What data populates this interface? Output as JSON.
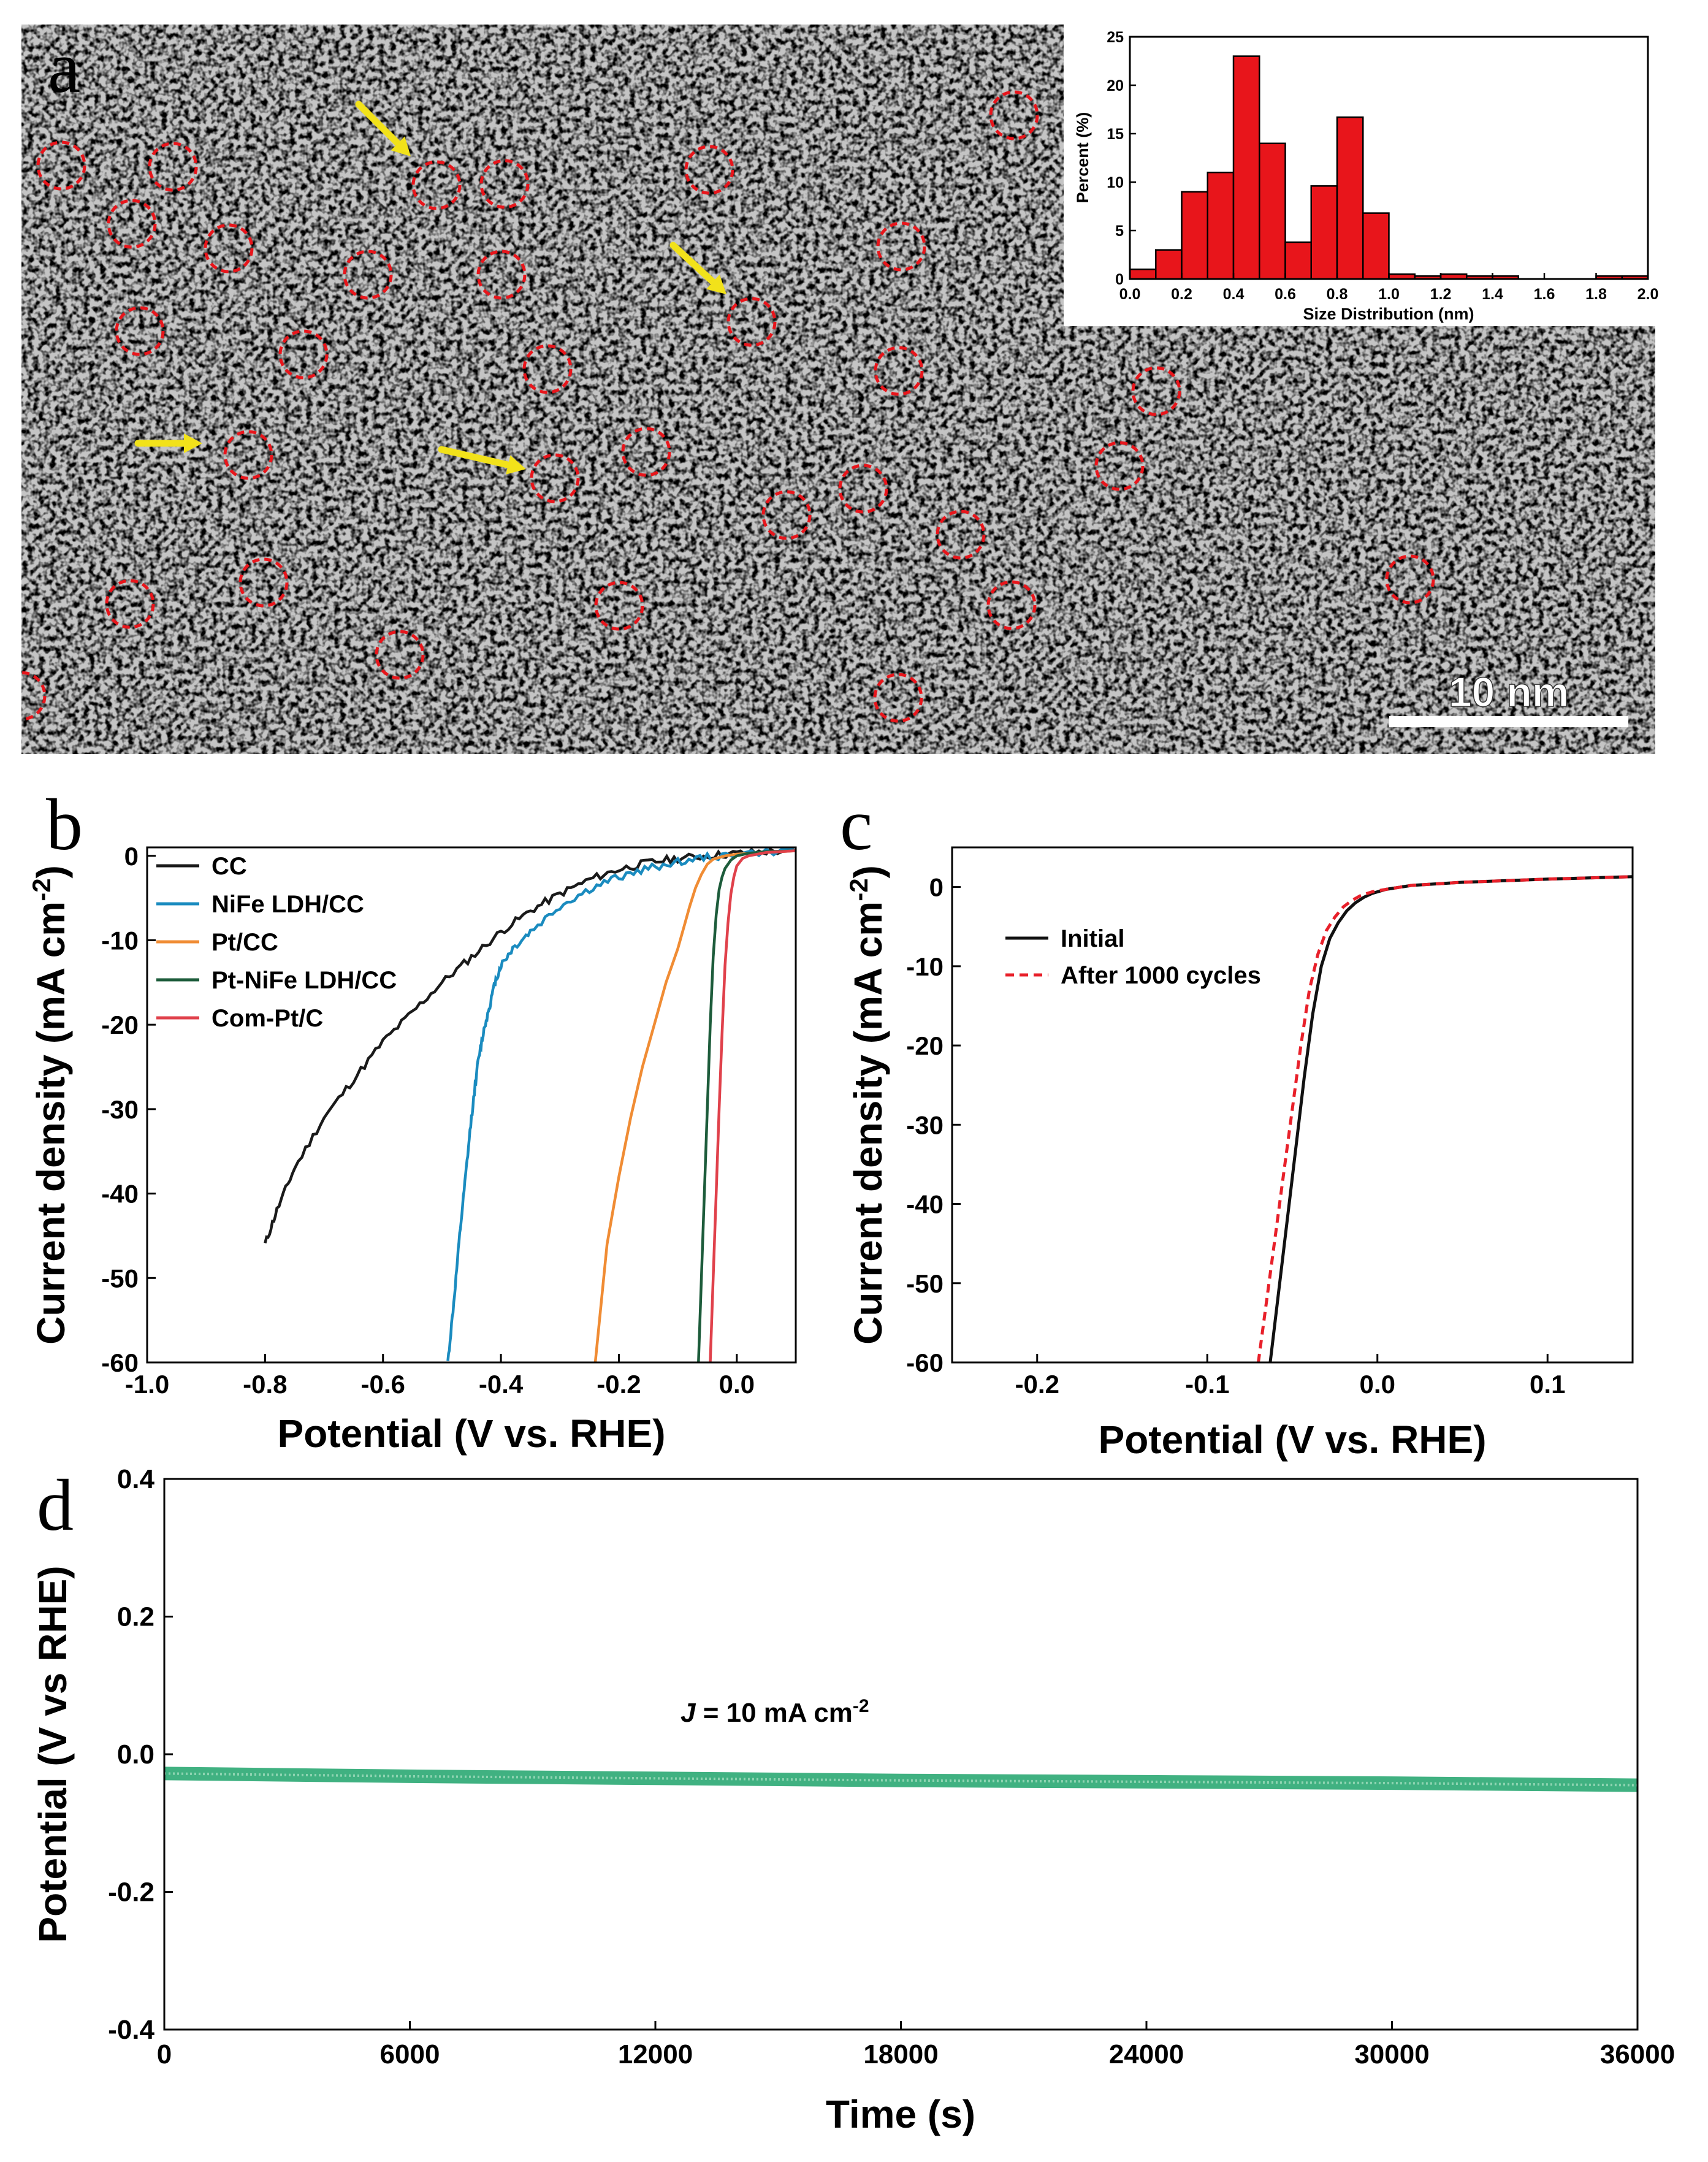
{
  "panel_letters": {
    "a": "a",
    "b": "b",
    "c": "c",
    "d": "d"
  },
  "micrograph": {
    "scale_bar_label": "10 nm",
    "description": "TEM image with red dashed circles marking single Pt atoms and yellow arrows"
  },
  "colors": {
    "cc": "#1a1a1a",
    "nife": "#1a8bbf",
    "ptcc": "#f08c34",
    "ptnife": "#1d5c3b",
    "compt": "#e0414b",
    "initial": "#111111",
    "after": "#e8202a",
    "stability": "#1fa36b",
    "histogram": "#e8151b",
    "circles": "#e8151b",
    "arrows": "#f2e21a"
  },
  "chart_data": [
    {
      "id": "inset",
      "type": "bar",
      "xlabel": "Size Distribution (nm)",
      "ylabel": "Percent (%)",
      "xlim": [
        0,
        2.0
      ],
      "ylim": [
        0,
        25
      ],
      "xticks": [
        "0.0",
        "0.2",
        "0.4",
        "0.6",
        "0.8",
        "1.0",
        "1.2",
        "1.4",
        "1.6",
        "1.8",
        "2.0"
      ],
      "yticks": [
        "0",
        "5",
        "10",
        "15",
        "20",
        "25"
      ],
      "bin_width": 0.1,
      "bins": [
        0.05,
        0.15,
        0.25,
        0.35,
        0.45,
        0.55,
        0.65,
        0.75,
        0.85,
        0.95,
        1.05,
        1.15,
        1.25,
        1.35,
        1.45,
        1.55,
        1.65,
        1.75,
        1.85,
        1.95
      ],
      "values": [
        1.0,
        3.0,
        9.0,
        11.0,
        23.0,
        14.0,
        3.8,
        9.6,
        16.7,
        6.8,
        0.5,
        0.3,
        0.5,
        0.3,
        0.3,
        0.0,
        0.0,
        0.0,
        0.3,
        0.3
      ]
    },
    {
      "id": "b",
      "type": "line",
      "xlabel": "Potential (V vs. RHE)",
      "ylabel": "Current density (mA cm",
      "ylabel_sup": "-2",
      "ylabel_end": ")",
      "xlim": [
        -1.0,
        0.1
      ],
      "ylim": [
        -60,
        1
      ],
      "xticks": [
        "-1.0",
        "-0.8",
        "-0.6",
        "-0.4",
        "-0.2",
        "0.0"
      ],
      "yticks": [
        "0",
        "-10",
        "-20",
        "-30",
        "-40",
        "-50",
        "-60"
      ],
      "series": [
        {
          "name": "CC",
          "color_key": "cc",
          "x": [
            -0.8,
            -0.78,
            -0.75,
            -0.7,
            -0.65,
            -0.6,
            -0.55,
            -0.5,
            -0.45,
            -0.4,
            -0.35,
            -0.3,
            -0.25,
            -0.2,
            -0.15,
            -0.1,
            -0.05,
            0.0,
            0.05,
            0.1
          ],
          "y": [
            -46,
            -42,
            -37,
            -31,
            -26.5,
            -22,
            -18.5,
            -15,
            -12,
            -9,
            -6.5,
            -4.5,
            -2.8,
            -1.6,
            -0.8,
            -0.3,
            0,
            0.3,
            0.5,
            0.6
          ]
        },
        {
          "name": "NiFe LDH/CC",
          "color_key": "nife",
          "x": [
            -0.49,
            -0.48,
            -0.47,
            -0.46,
            -0.45,
            -0.44,
            -0.43,
            -0.42,
            -0.41,
            -0.4,
            -0.38,
            -0.35,
            -0.3,
            -0.25,
            -0.2,
            -0.15,
            -0.1,
            -0.05,
            0.0,
            0.1
          ],
          "y": [
            -60,
            -53,
            -45,
            -38,
            -31,
            -25,
            -21,
            -18,
            -15,
            -13,
            -11,
            -9,
            -6,
            -4,
            -2.5,
            -1.5,
            -0.7,
            -0.2,
            0.2,
            0.6
          ]
        },
        {
          "name": "Pt/CC",
          "color_key": "ptcc",
          "x": [
            -0.24,
            -0.23,
            -0.22,
            -0.2,
            -0.18,
            -0.16,
            -0.14,
            -0.12,
            -0.1,
            -0.09,
            -0.08,
            -0.07,
            -0.06,
            -0.05,
            -0.04,
            -0.02,
            0.0,
            0.05,
            0.1
          ],
          "y": [
            -60,
            -53,
            -46,
            -38,
            -31,
            -25,
            -20,
            -15,
            -11,
            -8.5,
            -6,
            -3.8,
            -2.2,
            -1,
            -0.4,
            0,
            0.2,
            0.4,
            0.6
          ]
        },
        {
          "name": "Pt-NiFe LDH/CC",
          "color_key": "ptnife",
          "x": [
            -0.065,
            -0.06,
            -0.055,
            -0.05,
            -0.045,
            -0.04,
            -0.035,
            -0.03,
            -0.025,
            -0.02,
            -0.01,
            0.0,
            0.02,
            0.05,
            0.1
          ],
          "y": [
            -60,
            -50,
            -40,
            -30,
            -20,
            -12,
            -7,
            -4,
            -2.5,
            -1.5,
            -0.5,
            0,
            0.3,
            0.5,
            0.6
          ]
        },
        {
          "name": "Com-Pt/C",
          "color_key": "compt",
          "x": [
            -0.045,
            -0.04,
            -0.035,
            -0.03,
            -0.025,
            -0.02,
            -0.015,
            -0.01,
            -0.005,
            0.0,
            0.01,
            0.02,
            0.05,
            0.1
          ],
          "y": [
            -60,
            -50,
            -40,
            -30,
            -21,
            -13,
            -8,
            -4.5,
            -2.5,
            -1.2,
            -0.3,
            0,
            0.4,
            0.6
          ]
        }
      ]
    },
    {
      "id": "c",
      "type": "line",
      "xlabel": "Potential (V vs. RHE)",
      "ylabel": "Current density (mA cm",
      "ylabel_sup": "-2",
      "ylabel_end": ")",
      "xlim": [
        -0.25,
        0.15
      ],
      "ylim": [
        -60,
        5
      ],
      "xticks": [
        "-0.2",
        "-0.1",
        "0.0",
        "0.1"
      ],
      "yticks": [
        "0",
        "-10",
        "-20",
        "-30",
        "-40",
        "-50",
        "-60"
      ],
      "series": [
        {
          "name": "Initial",
          "color_key": "initial",
          "dash": false,
          "x": [
            -0.063,
            -0.058,
            -0.053,
            -0.048,
            -0.043,
            -0.038,
            -0.033,
            -0.028,
            -0.023,
            -0.018,
            -0.013,
            -0.008,
            -0.003,
            0.005,
            0.02,
            0.05,
            0.1,
            0.15
          ],
          "y": [
            -60,
            -51,
            -42,
            -33,
            -24,
            -16,
            -10,
            -6.5,
            -4.5,
            -3,
            -2,
            -1.3,
            -0.8,
            -0.3,
            0.2,
            0.6,
            1,
            1.3
          ]
        },
        {
          "name": "After 1000 cycles",
          "color_key": "after",
          "dash": true,
          "x": [
            -0.07,
            -0.065,
            -0.06,
            -0.055,
            -0.05,
            -0.045,
            -0.04,
            -0.035,
            -0.03,
            -0.025,
            -0.02,
            -0.015,
            -0.01,
            -0.003,
            0.005,
            0.02,
            0.05,
            0.1,
            0.15
          ],
          "y": [
            -60,
            -52,
            -44,
            -36,
            -28,
            -20,
            -13,
            -8.5,
            -5.5,
            -3.8,
            -2.5,
            -1.7,
            -1.1,
            -0.6,
            -0.3,
            0.2,
            0.6,
            1,
            1.3
          ]
        }
      ]
    },
    {
      "id": "d",
      "type": "line",
      "xlabel": "Time (s)",
      "ylabel": "Potential (V vs RHE)",
      "xlim": [
        0,
        36000
      ],
      "ylim": [
        -0.4,
        0.4
      ],
      "xticks": [
        "0",
        "6000",
        "12000",
        "18000",
        "24000",
        "30000",
        "36000"
      ],
      "yticks": [
        "0.4",
        "0.2",
        "0.0",
        "-0.2",
        "-0.4"
      ],
      "annotation_j": "J",
      "annotation_rest": " = 10 mA cm",
      "annotation_sup": "-2",
      "series": [
        {
          "name": "Pt-NiFe LDH/CC",
          "color_key": "stability",
          "x": [
            0,
            6000,
            12000,
            18000,
            24000,
            30000,
            36000
          ],
          "y": [
            -0.028,
            -0.032,
            -0.035,
            -0.038,
            -0.04,
            -0.042,
            -0.045
          ]
        }
      ]
    }
  ]
}
